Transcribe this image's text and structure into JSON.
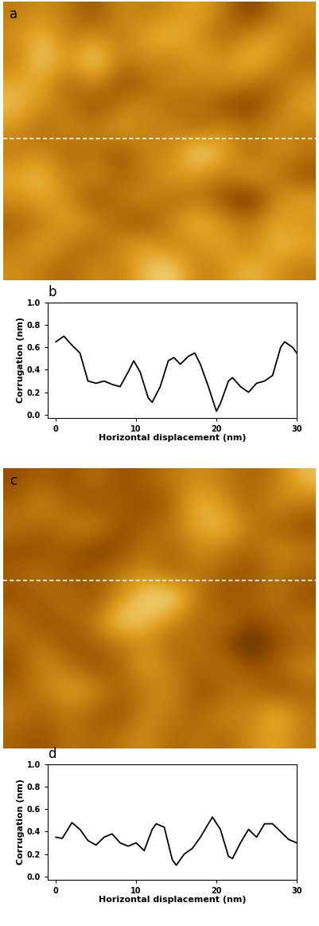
{
  "chart_data": [
    {
      "type": "heatmap",
      "title": "a",
      "tick_labels": false,
      "colors": [
        "#2b0f00",
        "#9a5400",
        "#e0a020",
        "#fff3b0"
      ],
      "color_range": [
        0,
        1
      ],
      "cells": [
        [
          0.5,
          0.6,
          0.5,
          0.3,
          0.6,
          0.5,
          0.6,
          0.7,
          0.5,
          0.2,
          0.5,
          0.6
        ],
        [
          0.6,
          0.8,
          0.5,
          0.6,
          0.5,
          0.7,
          0.8,
          0.6,
          0.4,
          0.6,
          0.7,
          0.5
        ],
        [
          0.5,
          0.9,
          0.6,
          0.95,
          0.5,
          0.6,
          0.5,
          0.7,
          0.6,
          0.8,
          0.6,
          0.4
        ],
        [
          0.7,
          0.7,
          0.4,
          0.6,
          0.3,
          0.4,
          0.6,
          0.5,
          0.6,
          0.5,
          0.4,
          0.6
        ],
        [
          0.8,
          0.6,
          0.5,
          0.3,
          0.5,
          0.6,
          0.4,
          0.5,
          0.3,
          0.2,
          0.5,
          0.7
        ],
        [
          0.6,
          0.4,
          0.6,
          0.5,
          0.7,
          0.5,
          0.6,
          0.4,
          0.6,
          0.5,
          0.6,
          0.5
        ],
        [
          0.5,
          0.6,
          0.4,
          0.5,
          0.3,
          0.6,
          0.5,
          1.0,
          0.7,
          0.4,
          0.6,
          0.5
        ],
        [
          0.7,
          0.8,
          0.5,
          0.6,
          0.4,
          0.5,
          0.7,
          0.6,
          0.5,
          0.7,
          0.5,
          0.3
        ],
        [
          0.6,
          0.7,
          0.6,
          0.3,
          0.5,
          0.6,
          0.4,
          0.5,
          0.3,
          0.1,
          0.6,
          0.7
        ],
        [
          0.4,
          0.5,
          0.7,
          0.6,
          0.4,
          0.3,
          0.6,
          0.8,
          0.6,
          0.5,
          0.7,
          0.6
        ],
        [
          0.5,
          0.7,
          0.5,
          0.4,
          0.6,
          0.7,
          0.5,
          0.6,
          0.7,
          0.5,
          0.8,
          0.7
        ],
        [
          0.6,
          0.5,
          0.4,
          0.6,
          0.5,
          0.8,
          0.9,
          0.5,
          0.6,
          0.8,
          0.6,
          0.5
        ]
      ]
    },
    {
      "type": "line",
      "title": "b",
      "x_label": "Horizontal displacement (nm)",
      "y_label": "Corrugation (nm)",
      "color": "#000000",
      "tick_labels": true,
      "x": [
        0,
        1,
        2,
        3,
        4,
        5,
        6,
        7,
        8,
        9,
        9.7,
        10.5,
        11.5,
        12,
        13,
        14,
        14.7,
        15.5,
        16.5,
        17.3,
        18,
        19,
        20,
        20.5,
        21.5,
        22,
        23,
        24,
        25,
        26,
        27,
        28,
        28.5,
        29.5,
        30
      ],
      "values": [
        0.65,
        0.7,
        0.62,
        0.55,
        0.3,
        0.28,
        0.3,
        0.27,
        0.25,
        0.38,
        0.48,
        0.38,
        0.15,
        0.11,
        0.25,
        0.48,
        0.51,
        0.45,
        0.52,
        0.55,
        0.45,
        0.25,
        0.03,
        0.1,
        0.3,
        0.33,
        0.25,
        0.2,
        0.28,
        0.3,
        0.35,
        0.6,
        0.65,
        0.6,
        0.55
      ],
      "xlim": [
        -1,
        30
      ],
      "ylim": [
        -0.03,
        1.0
      ],
      "xticks": [
        0,
        10,
        20,
        30
      ],
      "yticks": [
        {
          "value": 0.0,
          "label": "0.0"
        },
        {
          "value": 0.2,
          "label": "0.2"
        },
        {
          "value": 0.4,
          "label": "0.4"
        },
        {
          "value": 0.6,
          "label": "0.6"
        },
        {
          "value": 0.8,
          "label": "0.8"
        },
        {
          "value": 1.0,
          "label": "1.0"
        }
      ]
    },
    {
      "type": "heatmap",
      "title": "c",
      "tick_labels": false,
      "colors": [
        "#2b0f00",
        "#9a5400",
        "#e0a020",
        "#fff3b0"
      ],
      "color_range": [
        0,
        1
      ],
      "cells": [
        [
          0.3,
          0.4,
          0.3,
          0.5,
          0.3,
          0.4,
          0.5,
          0.6,
          0.5,
          0.4,
          0.5,
          0.8
        ],
        [
          0.4,
          0.6,
          0.4,
          0.3,
          0.4,
          0.3,
          0.4,
          0.8,
          0.6,
          0.4,
          0.6,
          0.5
        ],
        [
          0.5,
          0.4,
          0.5,
          0.6,
          0.3,
          0.4,
          0.5,
          0.7,
          0.8,
          0.5,
          0.4,
          0.3
        ],
        [
          0.3,
          0.3,
          0.4,
          0.2,
          0.3,
          0.5,
          0.4,
          0.6,
          0.5,
          0.4,
          0.6,
          0.5
        ],
        [
          0.4,
          0.5,
          0.3,
          0.4,
          0.5,
          0.6,
          0.4,
          0.5,
          0.4,
          0.3,
          0.5,
          0.4
        ],
        [
          0.3,
          0.4,
          0.5,
          0.3,
          0.6,
          0.9,
          0.95,
          0.5,
          0.3,
          0.4,
          0.5,
          0.3
        ],
        [
          0.5,
          0.3,
          0.4,
          0.5,
          0.9,
          0.8,
          0.6,
          0.4,
          0.5,
          0.3,
          0.4,
          0.5
        ],
        [
          0.4,
          0.5,
          0.3,
          0.4,
          0.5,
          0.6,
          0.4,
          0.5,
          0.3,
          0.1,
          0.3,
          0.4
        ],
        [
          0.3,
          0.6,
          0.5,
          0.3,
          0.4,
          0.7,
          0.5,
          0.4,
          0.5,
          0.3,
          0.4,
          0.6
        ],
        [
          0.4,
          0.5,
          0.7,
          0.6,
          0.4,
          0.5,
          0.6,
          0.3,
          0.4,
          0.5,
          0.3,
          0.4
        ],
        [
          0.5,
          0.4,
          0.5,
          0.4,
          0.3,
          0.6,
          0.5,
          0.4,
          0.6,
          0.5,
          0.8,
          0.5
        ],
        [
          0.4,
          0.3,
          0.5,
          0.4,
          0.5,
          0.6,
          0.4,
          0.5,
          0.4,
          0.6,
          0.7,
          0.5
        ]
      ]
    },
    {
      "type": "line",
      "title": "d",
      "x_label": "Horizontal displacement (nm)",
      "y_label": "Corrugation (nm)",
      "color": "#000000",
      "tick_labels": true,
      "x": [
        0,
        0.8,
        2,
        3,
        4,
        5,
        6,
        7,
        8,
        9,
        10,
        11,
        12,
        12.5,
        13.5,
        14.5,
        15,
        16,
        17,
        18,
        19.5,
        20.5,
        21.5,
        22,
        23,
        24,
        25,
        26,
        27,
        28,
        29,
        30
      ],
      "values": [
        0.35,
        0.34,
        0.48,
        0.42,
        0.32,
        0.28,
        0.35,
        0.38,
        0.3,
        0.27,
        0.3,
        0.23,
        0.42,
        0.47,
        0.44,
        0.15,
        0.1,
        0.2,
        0.25,
        0.35,
        0.53,
        0.42,
        0.18,
        0.16,
        0.3,
        0.42,
        0.35,
        0.47,
        0.47,
        0.4,
        0.33,
        0.3
      ],
      "xlim": [
        -1,
        30
      ],
      "ylim": [
        -0.03,
        1.0
      ],
      "xticks": [
        0,
        10,
        20,
        30
      ],
      "yticks": [
        {
          "value": 0.0,
          "label": "0.0"
        },
        {
          "value": 0.2,
          "label": "0.2"
        },
        {
          "value": 0.4,
          "label": "0.4"
        },
        {
          "value": 0.6,
          "label": "0.6"
        },
        {
          "value": 0.8,
          "label": "0.8"
        },
        {
          "value": 1.0,
          "label": "1.0"
        }
      ]
    }
  ]
}
